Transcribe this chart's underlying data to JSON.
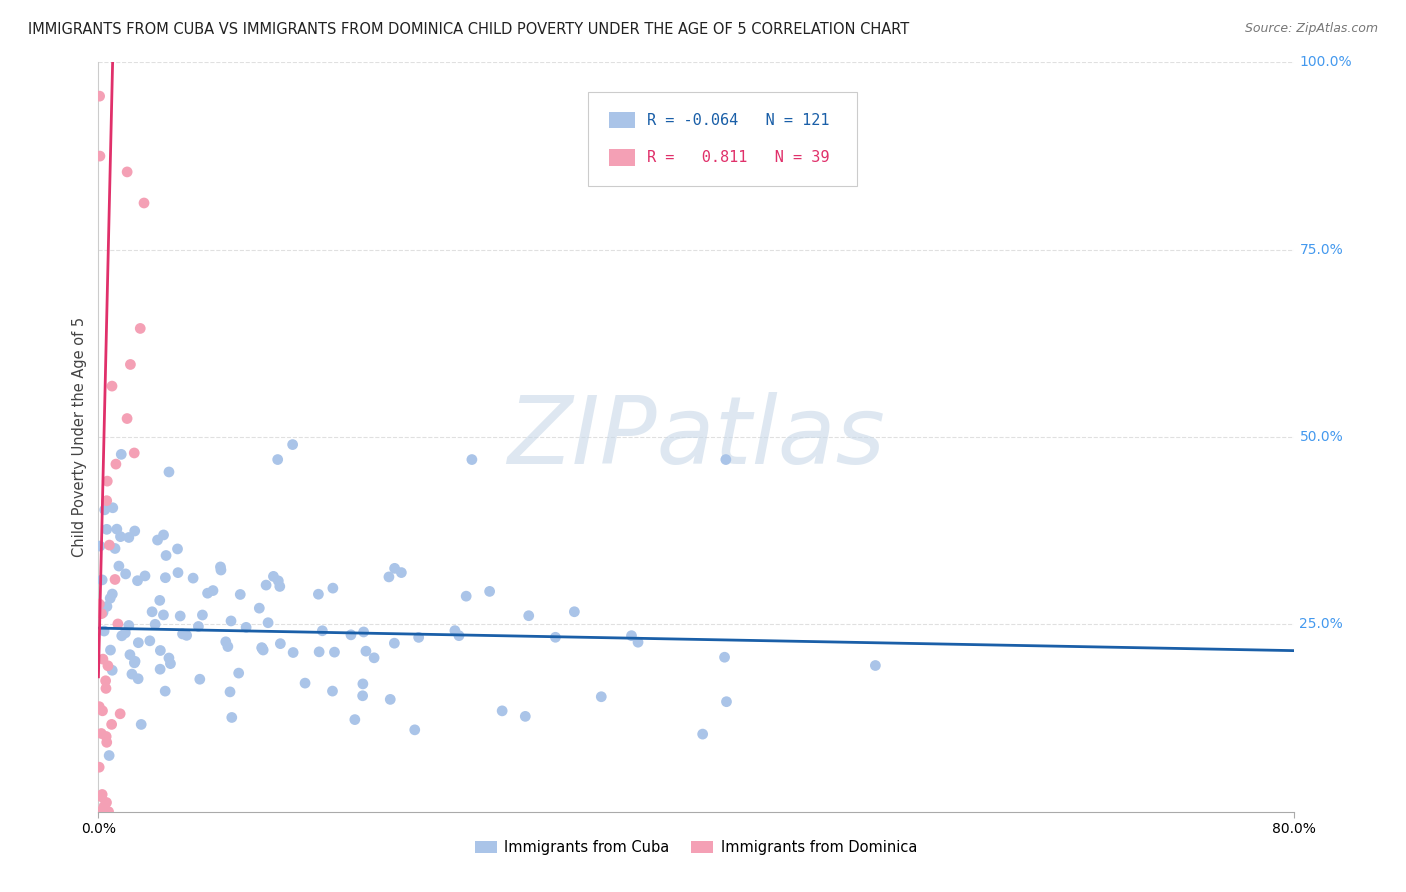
{
  "title": "IMMIGRANTS FROM CUBA VS IMMIGRANTS FROM DOMINICA CHILD POVERTY UNDER THE AGE OF 5 CORRELATION CHART",
  "source": "Source: ZipAtlas.com",
  "ylabel": "Child Poverty Under the Age of 5",
  "xlim": [
    0.0,
    0.8
  ],
  "ylim": [
    0.0,
    1.0
  ],
  "grid_color": "#e0e0e0",
  "background_color": "#ffffff",
  "cuba_color": "#aac4e8",
  "dominica_color": "#f4a0b5",
  "cuba_line_color": "#1a5fa8",
  "dominica_line_color": "#e0306a",
  "cuba_R": -0.064,
  "cuba_N": 121,
  "dominica_R": 0.811,
  "dominica_N": 39,
  "legend_label_cuba": "Immigrants from Cuba",
  "legend_label_dominica": "Immigrants from Dominica",
  "watermark": "ZIPatlas",
  "watermark_color": "#c8d8e8",
  "right_label_color": "#4499ee"
}
